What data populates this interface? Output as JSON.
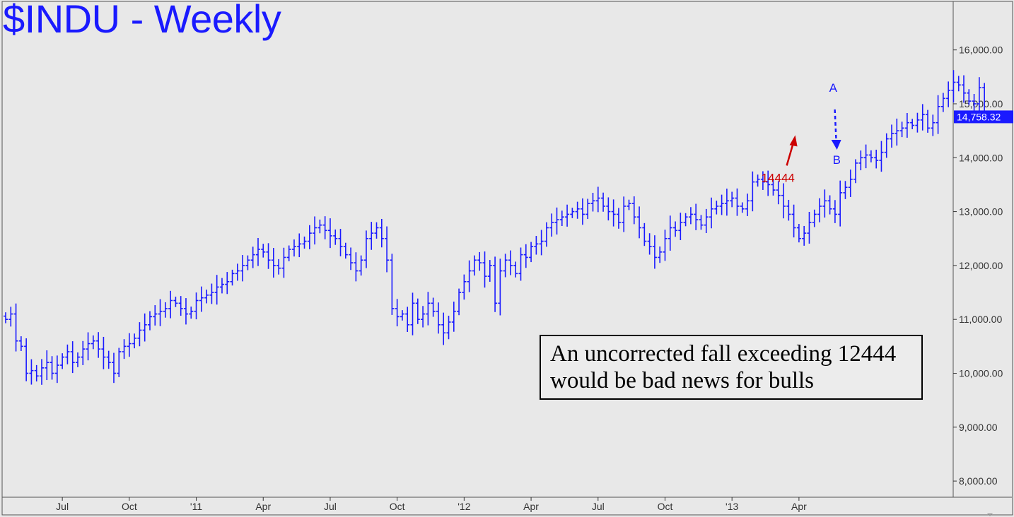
{
  "chart_data": {
    "type": "ohlc",
    "title": "$INDU - Weekly",
    "ylim": [
      7700,
      16900
    ],
    "yticks": [
      8000,
      9000,
      10000,
      11000,
      12000,
      13000,
      14000,
      15000,
      16000
    ],
    "ytick_labels": [
      "8,000.00",
      "9,000.00",
      "10,000.00",
      "11,000.00",
      "12,000.00",
      "13,000.00",
      "14,000.00",
      "15,000.00",
      "16,000.00"
    ],
    "xticks": [
      {
        "label": "Jul",
        "week": 11
      },
      {
        "label": "Oct",
        "week": 24
      },
      {
        "label": "'11",
        "week": 37
      },
      {
        "label": "Apr",
        "week": 50
      },
      {
        "label": "Jul",
        "week": 63
      },
      {
        "label": "Oct",
        "week": 76
      },
      {
        "label": "'12",
        "week": 89
      },
      {
        "label": "Apr",
        "week": 102
      },
      {
        "label": "Jul",
        "week": 115
      },
      {
        "label": "Oct",
        "week": 128
      },
      {
        "label": "'13",
        "week": 141
      },
      {
        "label": "Apr",
        "week": 154
      }
    ],
    "last_price": 14758.32,
    "last_price_label": "14,758.32",
    "series_close": [
      11000,
      11100,
      10600,
      10500,
      10000,
      10050,
      9950,
      10100,
      10200,
      10000,
      10150,
      10300,
      10400,
      10200,
      10300,
      10450,
      10550,
      10600,
      10450,
      10300,
      10200,
      10000,
      10400,
      10500,
      10550,
      10650,
      10800,
      10900,
      11050,
      11100,
      11150,
      11200,
      11350,
      11300,
      11200,
      11100,
      11150,
      11350,
      11400,
      11450,
      11500,
      11600,
      11650,
      11700,
      11850,
      11900,
      12000,
      12100,
      12200,
      12300,
      12250,
      12100,
      12000,
      11950,
      12150,
      12300,
      12350,
      12400,
      12450,
      12600,
      12700,
      12750,
      12650,
      12550,
      12500,
      12350,
      12200,
      12050,
      11900,
      12100,
      12500,
      12600,
      12700,
      12500,
      12100,
      11200,
      11050,
      11100,
      10900,
      11300,
      11000,
      11100,
      11300,
      11150,
      10900,
      10750,
      10950,
      11150,
      11500,
      11700,
      11900,
      12100,
      12050,
      11800,
      12000,
      11300,
      11900,
      12100,
      12000,
      11850,
      12200,
      12150,
      12350,
      12400,
      12450,
      12700,
      12800,
      12850,
      12900,
      12950,
      13000,
      13050,
      12950,
      13150,
      13200,
      13250,
      13100,
      13000,
      12950,
      12800,
      13100,
      13150,
      12900,
      12700,
      12450,
      12350,
      12150,
      12250,
      12500,
      12700,
      12650,
      12800,
      12900,
      12950,
      12850,
      12750,
      12900,
      13050,
      13100,
      13150,
      13200,
      13250,
      13100,
      13050,
      13200,
      13550,
      13600,
      13550,
      13500,
      13400,
      13300,
      13100,
      12950,
      12700,
      12500,
      12600,
      12800,
      12950,
      13100,
      13200,
      13050,
      12950,
      13350,
      13450,
      13600,
      13900,
      14000,
      14050,
      14000,
      13950,
      14100,
      14350,
      14450,
      14500,
      14550,
      14650,
      14600,
      14700,
      14800,
      14550,
      14650,
      14950,
      15100,
      15250,
      15400,
      15350,
      15200,
      15050,
      15000,
      15300,
      14758.32
    ],
    "annotations": [
      {
        "text": "A",
        "week": 160
      },
      {
        "text": "B",
        "week": 160
      },
      {
        "text": "14444",
        "week": 153,
        "price": 14444
      }
    ],
    "note": [
      "An uncorrected fall exceeding 12444",
      "would be bad news for bulls"
    ],
    "colors": {
      "bars": "#1a1aff",
      "price_box": "#1a1aff",
      "arrow_red": "#cc0000",
      "background": "#e8e8e8"
    }
  }
}
